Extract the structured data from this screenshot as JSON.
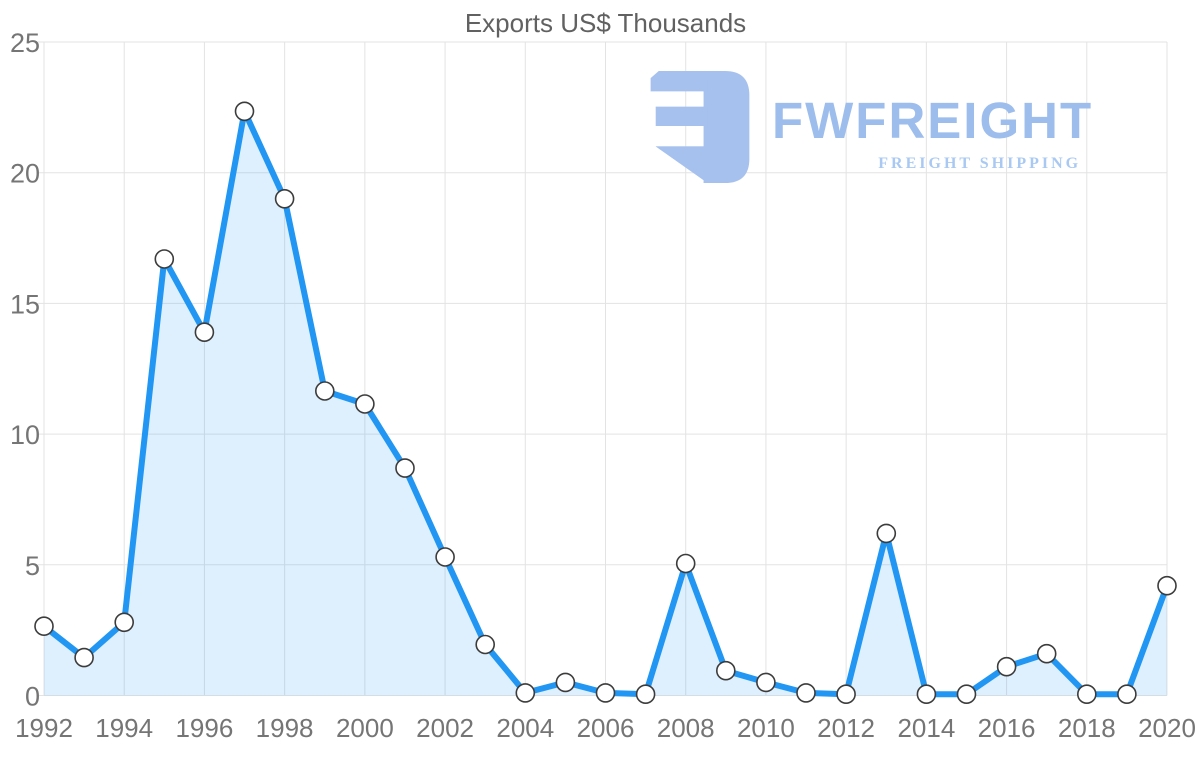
{
  "title": "Exports US$ Thousands",
  "watermark": {
    "brand": "FWFREIGHT",
    "tagline": "FREIGHT SHIPPING",
    "logo_mark": "freight-f-mark"
  },
  "colors": {
    "line": "#2196f3",
    "area_fill": "rgba(33,150,243,0.15)",
    "marker_fill": "#ffffff",
    "marker_stroke": "#3c3c3c",
    "grid": "#e3e3e3",
    "tick_label": "#757575",
    "title": "#616161",
    "logo_mark": "#a6c1ee",
    "logo_text": "#9dbdec",
    "logo_tagline": "#a9c9f2"
  },
  "chart_data": {
    "type": "area",
    "title": "Exports US$ Thousands",
    "xlabel": "",
    "ylabel": "",
    "x": [
      1992,
      1993,
      1994,
      1995,
      1996,
      1997,
      1998,
      1999,
      2000,
      2001,
      2002,
      2003,
      2004,
      2005,
      2006,
      2007,
      2008,
      2009,
      2010,
      2011,
      2012,
      2013,
      2014,
      2015,
      2016,
      2017,
      2018,
      2019,
      2020
    ],
    "values": [
      2.65,
      1.45,
      2.8,
      16.7,
      13.9,
      22.35,
      19.0,
      11.65,
      11.15,
      8.7,
      5.3,
      1.95,
      0.1,
      0.5,
      0.1,
      0.05,
      5.05,
      0.95,
      0.5,
      0.1,
      0.05,
      6.2,
      0.05,
      0.05,
      1.1,
      1.6,
      0.05,
      0.05,
      4.2
    ],
    "ylim": [
      0,
      25
    ],
    "yticks": [
      0,
      5,
      10,
      15,
      20,
      25
    ],
    "xticks": [
      1992,
      1994,
      1996,
      1998,
      2000,
      2002,
      2004,
      2006,
      2008,
      2010,
      2012,
      2014,
      2016,
      2018,
      2020
    ],
    "grid": true,
    "legend": "none",
    "marker": "circle",
    "series_name": "Exports"
  }
}
